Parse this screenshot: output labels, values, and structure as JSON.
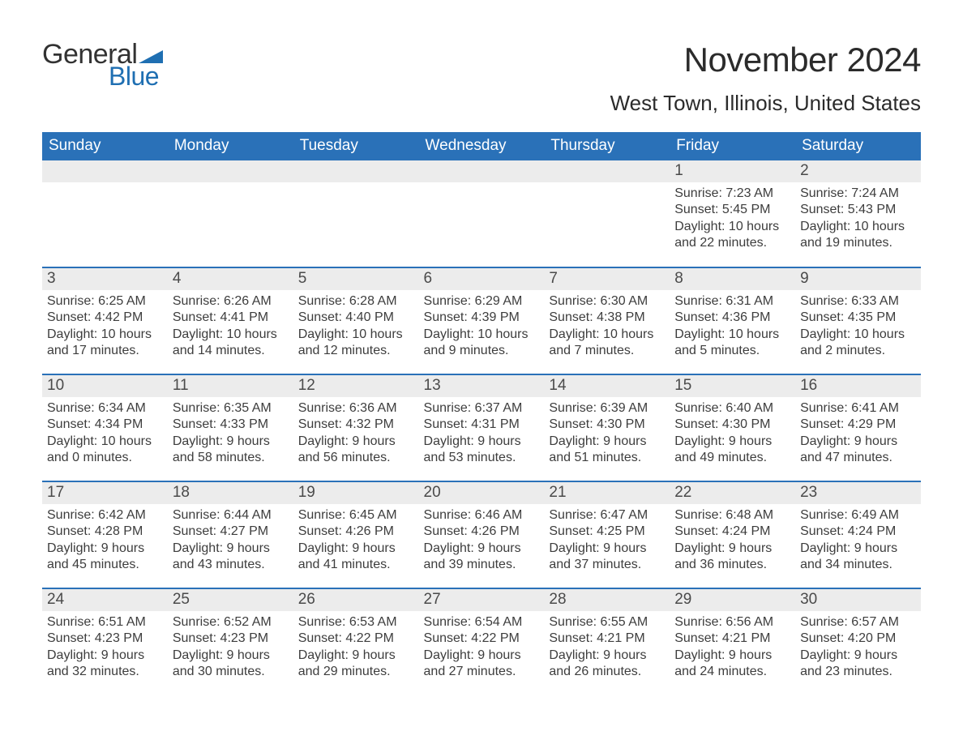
{
  "logo": {
    "text_general": "General",
    "text_blue": "Blue",
    "flag_color": "#1f6fb2",
    "general_color": "#323232",
    "blue_color": "#1f6fb2"
  },
  "header": {
    "month_title": "November 2024",
    "location": "West Town, Illinois, United States"
  },
  "calendar": {
    "header_bg": "#2a71b8",
    "header_fg": "#ffffff",
    "daynum_bg": "#ececec",
    "border_color": "#2a71b8",
    "text_color": "#3d3d3d",
    "day_headers": [
      "Sunday",
      "Monday",
      "Tuesday",
      "Wednesday",
      "Thursday",
      "Friday",
      "Saturday"
    ],
    "weeks": [
      [
        {
          "empty": true
        },
        {
          "empty": true
        },
        {
          "empty": true
        },
        {
          "empty": true
        },
        {
          "empty": true
        },
        {
          "day": "1",
          "sunrise": "Sunrise: 7:23 AM",
          "sunset": "Sunset: 5:45 PM",
          "daylight1": "Daylight: 10 hours",
          "daylight2": "and 22 minutes."
        },
        {
          "day": "2",
          "sunrise": "Sunrise: 7:24 AM",
          "sunset": "Sunset: 5:43 PM",
          "daylight1": "Daylight: 10 hours",
          "daylight2": "and 19 minutes."
        }
      ],
      [
        {
          "day": "3",
          "sunrise": "Sunrise: 6:25 AM",
          "sunset": "Sunset: 4:42 PM",
          "daylight1": "Daylight: 10 hours",
          "daylight2": "and 17 minutes."
        },
        {
          "day": "4",
          "sunrise": "Sunrise: 6:26 AM",
          "sunset": "Sunset: 4:41 PM",
          "daylight1": "Daylight: 10 hours",
          "daylight2": "and 14 minutes."
        },
        {
          "day": "5",
          "sunrise": "Sunrise: 6:28 AM",
          "sunset": "Sunset: 4:40 PM",
          "daylight1": "Daylight: 10 hours",
          "daylight2": "and 12 minutes."
        },
        {
          "day": "6",
          "sunrise": "Sunrise: 6:29 AM",
          "sunset": "Sunset: 4:39 PM",
          "daylight1": "Daylight: 10 hours",
          "daylight2": "and 9 minutes."
        },
        {
          "day": "7",
          "sunrise": "Sunrise: 6:30 AM",
          "sunset": "Sunset: 4:38 PM",
          "daylight1": "Daylight: 10 hours",
          "daylight2": "and 7 minutes."
        },
        {
          "day": "8",
          "sunrise": "Sunrise: 6:31 AM",
          "sunset": "Sunset: 4:36 PM",
          "daylight1": "Daylight: 10 hours",
          "daylight2": "and 5 minutes."
        },
        {
          "day": "9",
          "sunrise": "Sunrise: 6:33 AM",
          "sunset": "Sunset: 4:35 PM",
          "daylight1": "Daylight: 10 hours",
          "daylight2": "and 2 minutes."
        }
      ],
      [
        {
          "day": "10",
          "sunrise": "Sunrise: 6:34 AM",
          "sunset": "Sunset: 4:34 PM",
          "daylight1": "Daylight: 10 hours",
          "daylight2": "and 0 minutes."
        },
        {
          "day": "11",
          "sunrise": "Sunrise: 6:35 AM",
          "sunset": "Sunset: 4:33 PM",
          "daylight1": "Daylight: 9 hours",
          "daylight2": "and 58 minutes."
        },
        {
          "day": "12",
          "sunrise": "Sunrise: 6:36 AM",
          "sunset": "Sunset: 4:32 PM",
          "daylight1": "Daylight: 9 hours",
          "daylight2": "and 56 minutes."
        },
        {
          "day": "13",
          "sunrise": "Sunrise: 6:37 AM",
          "sunset": "Sunset: 4:31 PM",
          "daylight1": "Daylight: 9 hours",
          "daylight2": "and 53 minutes."
        },
        {
          "day": "14",
          "sunrise": "Sunrise: 6:39 AM",
          "sunset": "Sunset: 4:30 PM",
          "daylight1": "Daylight: 9 hours",
          "daylight2": "and 51 minutes."
        },
        {
          "day": "15",
          "sunrise": "Sunrise: 6:40 AM",
          "sunset": "Sunset: 4:30 PM",
          "daylight1": "Daylight: 9 hours",
          "daylight2": "and 49 minutes."
        },
        {
          "day": "16",
          "sunrise": "Sunrise: 6:41 AM",
          "sunset": "Sunset: 4:29 PM",
          "daylight1": "Daylight: 9 hours",
          "daylight2": "and 47 minutes."
        }
      ],
      [
        {
          "day": "17",
          "sunrise": "Sunrise: 6:42 AM",
          "sunset": "Sunset: 4:28 PM",
          "daylight1": "Daylight: 9 hours",
          "daylight2": "and 45 minutes."
        },
        {
          "day": "18",
          "sunrise": "Sunrise: 6:44 AM",
          "sunset": "Sunset: 4:27 PM",
          "daylight1": "Daylight: 9 hours",
          "daylight2": "and 43 minutes."
        },
        {
          "day": "19",
          "sunrise": "Sunrise: 6:45 AM",
          "sunset": "Sunset: 4:26 PM",
          "daylight1": "Daylight: 9 hours",
          "daylight2": "and 41 minutes."
        },
        {
          "day": "20",
          "sunrise": "Sunrise: 6:46 AM",
          "sunset": "Sunset: 4:26 PM",
          "daylight1": "Daylight: 9 hours",
          "daylight2": "and 39 minutes."
        },
        {
          "day": "21",
          "sunrise": "Sunrise: 6:47 AM",
          "sunset": "Sunset: 4:25 PM",
          "daylight1": "Daylight: 9 hours",
          "daylight2": "and 37 minutes."
        },
        {
          "day": "22",
          "sunrise": "Sunrise: 6:48 AM",
          "sunset": "Sunset: 4:24 PM",
          "daylight1": "Daylight: 9 hours",
          "daylight2": "and 36 minutes."
        },
        {
          "day": "23",
          "sunrise": "Sunrise: 6:49 AM",
          "sunset": "Sunset: 4:24 PM",
          "daylight1": "Daylight: 9 hours",
          "daylight2": "and 34 minutes."
        }
      ],
      [
        {
          "day": "24",
          "sunrise": "Sunrise: 6:51 AM",
          "sunset": "Sunset: 4:23 PM",
          "daylight1": "Daylight: 9 hours",
          "daylight2": "and 32 minutes."
        },
        {
          "day": "25",
          "sunrise": "Sunrise: 6:52 AM",
          "sunset": "Sunset: 4:23 PM",
          "daylight1": "Daylight: 9 hours",
          "daylight2": "and 30 minutes."
        },
        {
          "day": "26",
          "sunrise": "Sunrise: 6:53 AM",
          "sunset": "Sunset: 4:22 PM",
          "daylight1": "Daylight: 9 hours",
          "daylight2": "and 29 minutes."
        },
        {
          "day": "27",
          "sunrise": "Sunrise: 6:54 AM",
          "sunset": "Sunset: 4:22 PM",
          "daylight1": "Daylight: 9 hours",
          "daylight2": "and 27 minutes."
        },
        {
          "day": "28",
          "sunrise": "Sunrise: 6:55 AM",
          "sunset": "Sunset: 4:21 PM",
          "daylight1": "Daylight: 9 hours",
          "daylight2": "and 26 minutes."
        },
        {
          "day": "29",
          "sunrise": "Sunrise: 6:56 AM",
          "sunset": "Sunset: 4:21 PM",
          "daylight1": "Daylight: 9 hours",
          "daylight2": "and 24 minutes."
        },
        {
          "day": "30",
          "sunrise": "Sunrise: 6:57 AM",
          "sunset": "Sunset: 4:20 PM",
          "daylight1": "Daylight: 9 hours",
          "daylight2": "and 23 minutes."
        }
      ]
    ]
  }
}
